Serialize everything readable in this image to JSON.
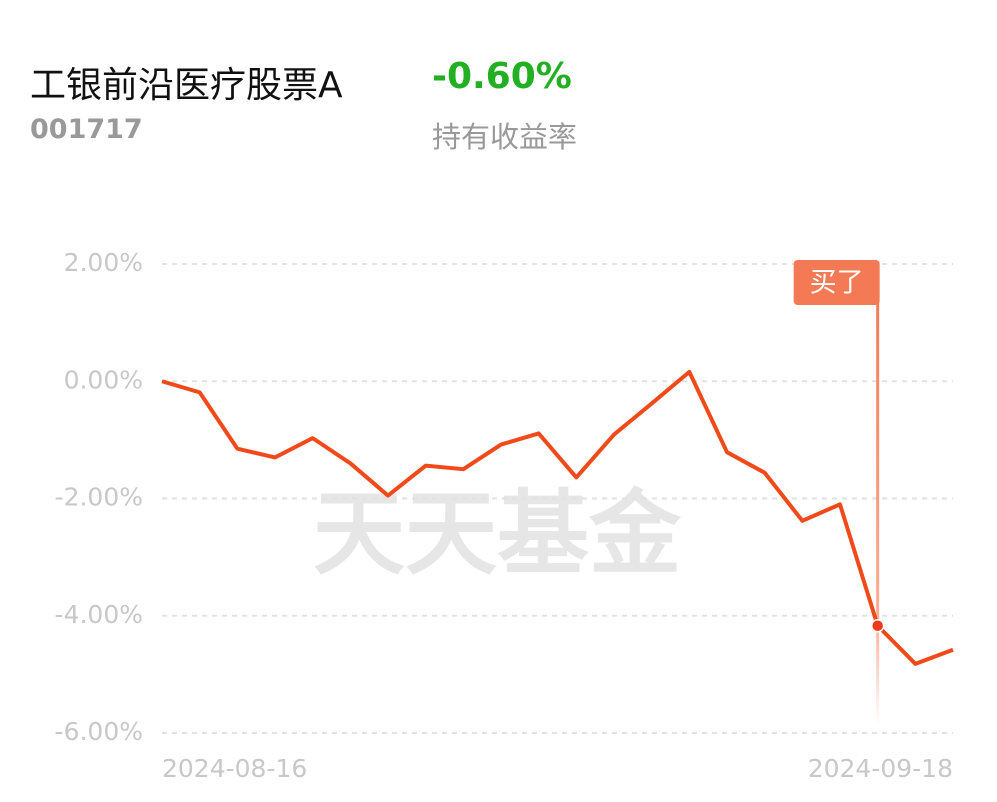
{
  "header": {
    "fund_name": "工银前沿医疗股票A",
    "return_value": "-0.60%",
    "fund_code": "001717",
    "return_label": "持有收益率"
  },
  "chart_data": {
    "type": "line",
    "categories": [
      "2024-08-16",
      null,
      null,
      null,
      null,
      null,
      null,
      null,
      null,
      null,
      null,
      null,
      null,
      null,
      null,
      null,
      null,
      null,
      null,
      null,
      null,
      "2024-09-18"
    ],
    "series": [
      {
        "color": "#f04a1a",
        "values": [
          0.0,
          -0.19,
          -1.15,
          -1.3,
          -0.97,
          -1.4,
          -1.95,
          -1.44,
          -1.5,
          -1.08,
          -0.89,
          -1.64,
          -0.91,
          -0.38,
          0.16,
          -1.21,
          -1.56,
          -2.38,
          -2.1,
          -4.17,
          -4.82,
          -4.58
        ]
      }
    ],
    "ylim": [
      -6,
      2
    ],
    "yticks": [
      {
        "value": 2,
        "label": "2.00%"
      },
      {
        "value": 0,
        "label": "0.00%"
      },
      {
        "value": -2,
        "label": "-2.00%"
      },
      {
        "value": -4,
        "label": "-4.00%"
      },
      {
        "value": -6,
        "label": "-6.00%"
      }
    ],
    "grid": true,
    "annotations": [
      {
        "text": "买了",
        "x_index": 19
      }
    ],
    "watermark": "天天基金"
  }
}
